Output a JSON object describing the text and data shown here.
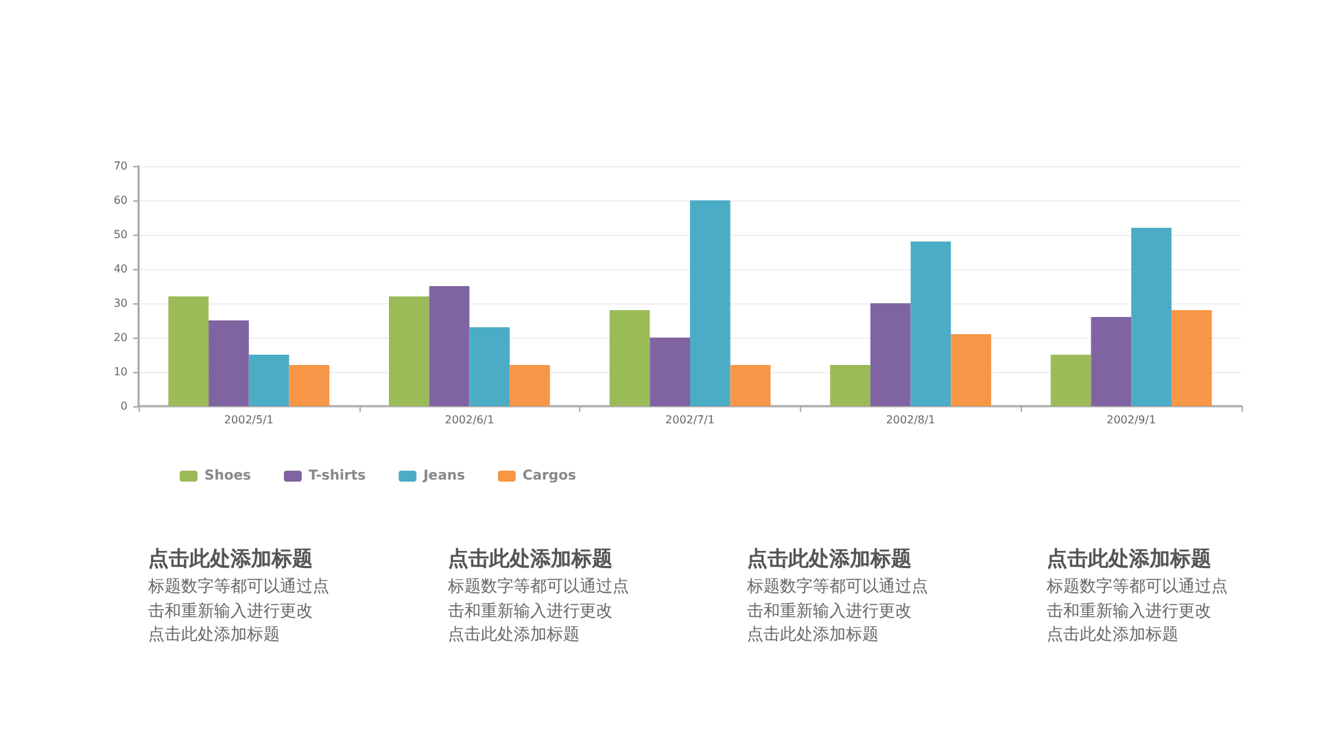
{
  "chart_data": {
    "type": "bar",
    "categories": [
      "2002/5/1",
      "2002/6/1",
      "2002/7/1",
      "2002/8/1",
      "2002/9/1"
    ],
    "series": [
      {
        "name": "Shoes",
        "color": "#9bbb59",
        "values": [
          32,
          32,
          28,
          12,
          15
        ]
      },
      {
        "name": "T-shirts",
        "color": "#8064a2",
        "values": [
          25,
          35,
          20,
          30,
          26
        ]
      },
      {
        "name": "Jeans",
        "color": "#4bacc6",
        "values": [
          15,
          23,
          60,
          48,
          52
        ]
      },
      {
        "name": "Cargos",
        "color": "#f79646",
        "values": [
          12,
          12,
          12,
          21,
          28
        ]
      }
    ],
    "ylim": [
      0,
      70
    ],
    "yticks": [
      0,
      10,
      20,
      30,
      40,
      50,
      60,
      70
    ],
    "grid": "y",
    "legend": "bottom left",
    "annotations": [
      "点击此处添加标题",
      "标题数字等都可以通过点击和重新输入进行更改",
      "点击此处添加标题",
      "点击此处添加标题",
      "标题数字等都可以通过点击和重新输入进行更改",
      "点击此处添加标题",
      "点击此处添加标题",
      "标题数字等都可以通过点击和重新输入进行更改",
      "点击此处添加标题",
      "点击此处添加标题",
      "标题数字等都可以通过点击和重新输入进行更改",
      "点击此处添加标题"
    ]
  }
}
